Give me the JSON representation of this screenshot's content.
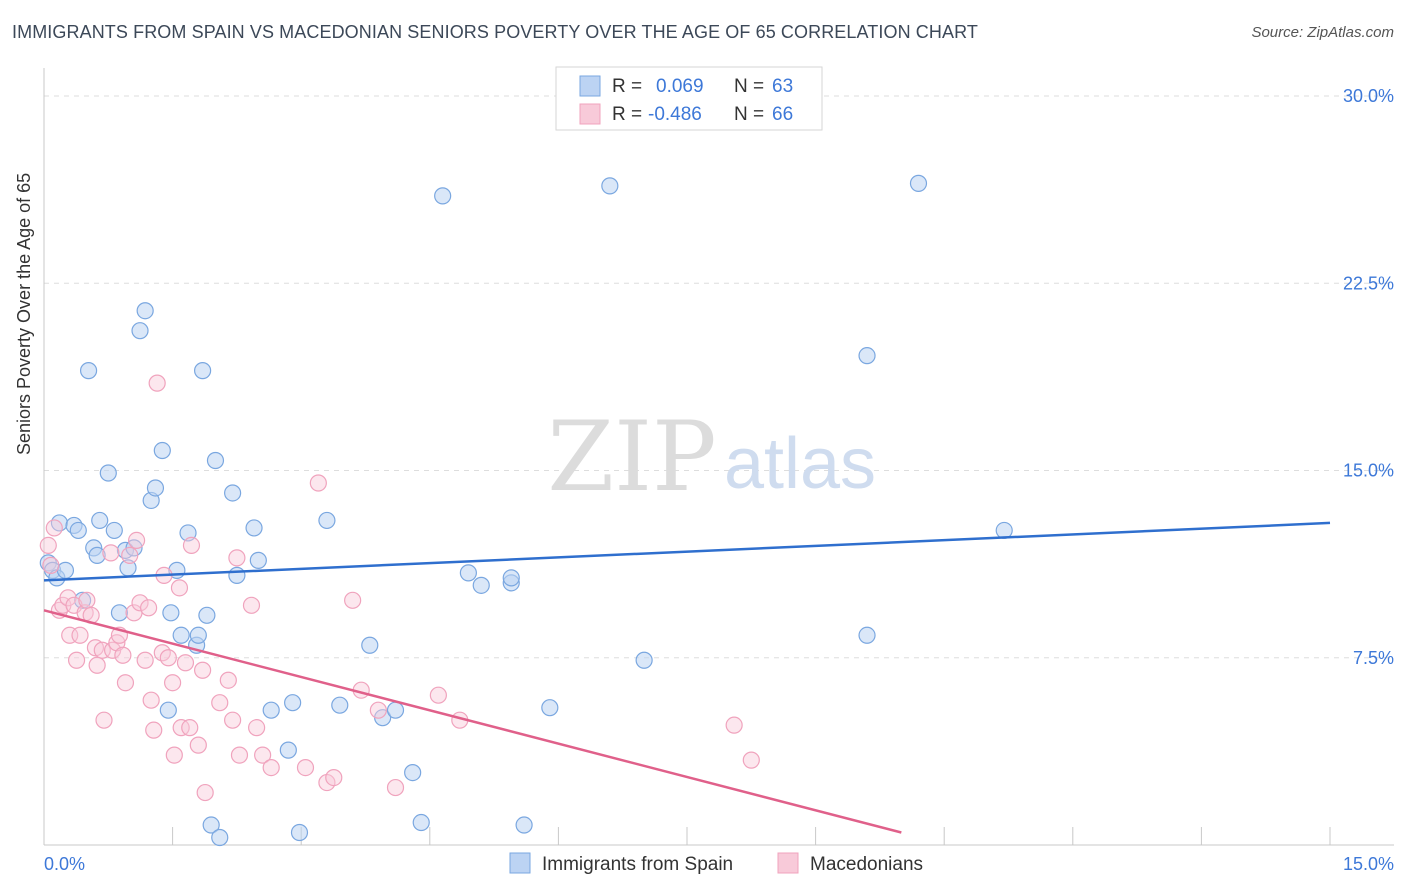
{
  "chart_data": {
    "type": "scatter",
    "title": "IMMIGRANTS FROM SPAIN VS MACEDONIAN SENIORS POVERTY OVER THE AGE OF 65 CORRELATION CHART",
    "source": "Source: ZipAtlas.com",
    "xlabel": "",
    "ylabel": "Seniors Poverty Over the Age of 65",
    "xlim": [
      0,
      15
    ],
    "ylim": [
      0,
      30
    ],
    "x_tick_labels": [
      "0.0%",
      "15.0%"
    ],
    "y_ticks": [
      7.5,
      15.0,
      22.5,
      30.0
    ],
    "y_tick_labels": [
      "7.5%",
      "15.0%",
      "22.5%",
      "30.0%"
    ],
    "watermark": "ZIPatlas",
    "legend": {
      "rows": [
        {
          "r_label": "R =",
          "r_value": "0.069",
          "n_label": "N =",
          "n_value": "63"
        },
        {
          "r_label": "R =",
          "r_value": "-0.486",
          "n_label": "N =",
          "n_value": "66"
        }
      ]
    },
    "series": [
      {
        "name": "Immigrants from Spain",
        "color": "#7aa7e0",
        "line_color": "#2f6fce",
        "trend": {
          "x0": 0.0,
          "y0": 10.6,
          "x1": 15.0,
          "y1": 12.9
        },
        "points": [
          [
            0.05,
            11.3
          ],
          [
            0.1,
            11.0
          ],
          [
            0.15,
            10.7
          ],
          [
            0.18,
            12.9
          ],
          [
            0.25,
            11.0
          ],
          [
            0.35,
            12.8
          ],
          [
            0.4,
            12.6
          ],
          [
            0.45,
            9.8
          ],
          [
            0.52,
            19.0
          ],
          [
            0.58,
            11.9
          ],
          [
            0.62,
            11.6
          ],
          [
            0.65,
            13.0
          ],
          [
            0.75,
            14.9
          ],
          [
            0.82,
            12.6
          ],
          [
            0.88,
            9.3
          ],
          [
            0.95,
            11.8
          ],
          [
            0.98,
            11.1
          ],
          [
            1.05,
            11.9
          ],
          [
            1.12,
            20.6
          ],
          [
            1.18,
            21.4
          ],
          [
            1.25,
            13.8
          ],
          [
            1.3,
            14.3
          ],
          [
            1.38,
            15.8
          ],
          [
            1.48,
            9.3
          ],
          [
            1.45,
            5.4
          ],
          [
            1.55,
            11.0
          ],
          [
            1.6,
            8.4
          ],
          [
            1.68,
            12.5
          ],
          [
            1.78,
            8.0
          ],
          [
            1.8,
            8.4
          ],
          [
            1.85,
            19.0
          ],
          [
            1.9,
            9.2
          ],
          [
            1.95,
            0.8
          ],
          [
            2.0,
            15.4
          ],
          [
            2.05,
            0.3
          ],
          [
            2.2,
            14.1
          ],
          [
            2.25,
            10.8
          ],
          [
            2.45,
            12.7
          ],
          [
            2.5,
            11.4
          ],
          [
            2.65,
            5.4
          ],
          [
            2.85,
            3.8
          ],
          [
            2.9,
            5.7
          ],
          [
            2.98,
            0.5
          ],
          [
            3.3,
            13.0
          ],
          [
            3.45,
            5.6
          ],
          [
            3.8,
            8.0
          ],
          [
            3.95,
            5.1
          ],
          [
            4.1,
            5.4
          ],
          [
            4.3,
            2.9
          ],
          [
            4.4,
            0.9
          ],
          [
            4.65,
            26.0
          ],
          [
            4.95,
            10.9
          ],
          [
            5.1,
            10.4
          ],
          [
            5.45,
            10.5
          ],
          [
            5.45,
            10.7
          ],
          [
            5.6,
            0.8
          ],
          [
            5.9,
            5.5
          ],
          [
            6.6,
            26.4
          ],
          [
            7.0,
            7.4
          ],
          [
            9.6,
            8.4
          ],
          [
            9.6,
            19.6
          ],
          [
            10.2,
            26.5
          ],
          [
            11.2,
            12.6
          ]
        ]
      },
      {
        "name": "Macedonians",
        "color": "#f0a3bd",
        "line_color": "#e0608a",
        "trend": {
          "x0": 0.0,
          "y0": 9.4,
          "x1": 10.0,
          "y1": 0.5
        },
        "points": [
          [
            0.05,
            12.0
          ],
          [
            0.08,
            11.2
          ],
          [
            0.12,
            12.7
          ],
          [
            0.18,
            9.4
          ],
          [
            0.22,
            9.6
          ],
          [
            0.28,
            9.9
          ],
          [
            0.3,
            8.4
          ],
          [
            0.35,
            9.6
          ],
          [
            0.38,
            7.4
          ],
          [
            0.42,
            8.4
          ],
          [
            0.48,
            9.3
          ],
          [
            0.5,
            9.8
          ],
          [
            0.55,
            9.2
          ],
          [
            0.6,
            7.9
          ],
          [
            0.62,
            7.2
          ],
          [
            0.68,
            7.8
          ],
          [
            0.7,
            5.0
          ],
          [
            0.78,
            11.7
          ],
          [
            0.8,
            7.8
          ],
          [
            0.85,
            8.1
          ],
          [
            0.88,
            8.4
          ],
          [
            0.92,
            7.6
          ],
          [
            0.95,
            6.5
          ],
          [
            1.0,
            11.6
          ],
          [
            1.05,
            9.3
          ],
          [
            1.08,
            12.2
          ],
          [
            1.12,
            9.7
          ],
          [
            1.18,
            7.4
          ],
          [
            1.22,
            9.5
          ],
          [
            1.25,
            5.8
          ],
          [
            1.28,
            4.6
          ],
          [
            1.32,
            18.5
          ],
          [
            1.38,
            7.7
          ],
          [
            1.4,
            10.8
          ],
          [
            1.45,
            7.5
          ],
          [
            1.5,
            6.5
          ],
          [
            1.52,
            3.6
          ],
          [
            1.58,
            10.3
          ],
          [
            1.6,
            4.7
          ],
          [
            1.65,
            7.3
          ],
          [
            1.7,
            4.7
          ],
          [
            1.72,
            12.0
          ],
          [
            1.8,
            4.0
          ],
          [
            1.85,
            7.0
          ],
          [
            1.88,
            2.1
          ],
          [
            2.05,
            5.7
          ],
          [
            2.15,
            6.6
          ],
          [
            2.2,
            5.0
          ],
          [
            2.25,
            11.5
          ],
          [
            2.28,
            3.6
          ],
          [
            2.42,
            9.6
          ],
          [
            2.48,
            4.7
          ],
          [
            2.55,
            3.6
          ],
          [
            2.65,
            3.1
          ],
          [
            3.05,
            3.1
          ],
          [
            3.2,
            14.5
          ],
          [
            3.3,
            2.5
          ],
          [
            3.38,
            2.7
          ],
          [
            3.6,
            9.8
          ],
          [
            3.7,
            6.2
          ],
          [
            3.9,
            5.4
          ],
          [
            4.1,
            2.3
          ],
          [
            4.6,
            6.0
          ],
          [
            4.85,
            5.0
          ],
          [
            8.05,
            4.8
          ],
          [
            8.25,
            3.4
          ]
        ]
      }
    ]
  }
}
